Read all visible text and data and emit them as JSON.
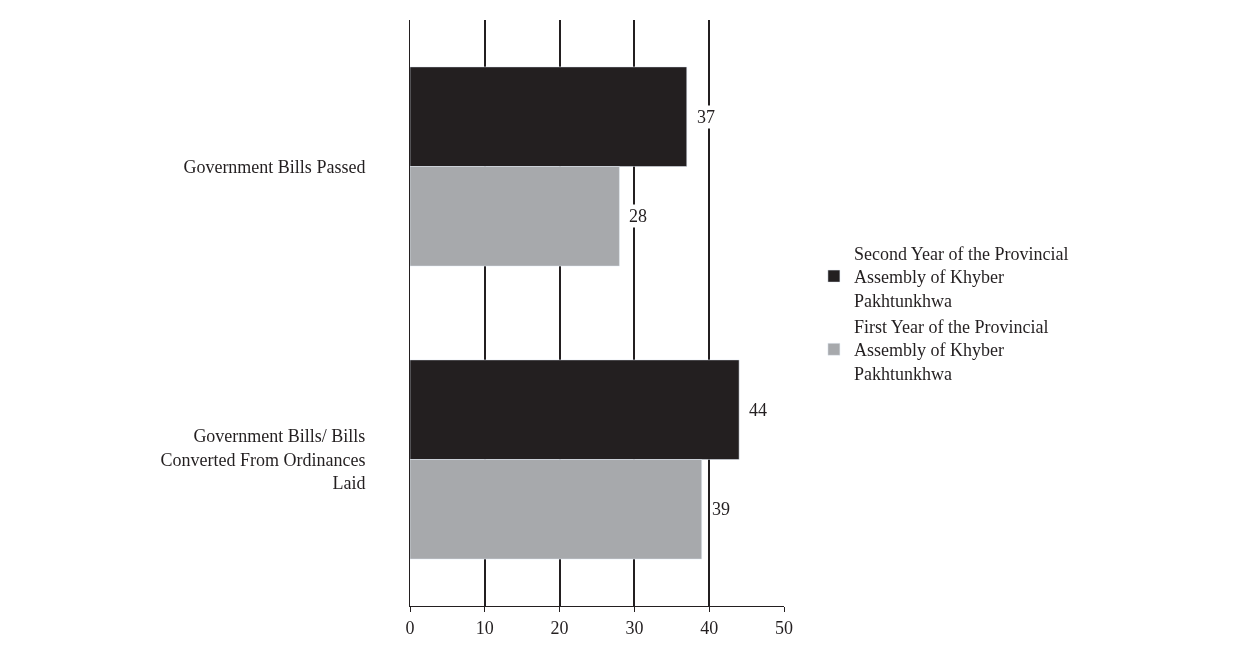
{
  "chart_data": {
    "type": "bar",
    "orientation": "horizontal",
    "categories": [
      "Government Bills Passed",
      "Government Bills/ Bills Converted From Ordinances Laid"
    ],
    "series": [
      {
        "name": "Second Year of the Provincial Assembly of Khyber Pakhtunkhwa",
        "color": "#231f20",
        "values": [
          37,
          44
        ]
      },
      {
        "name": "First Year of the Provincial Assembly of Khyber Pakhtunkhwa",
        "color": "#a7a9ac",
        "values": [
          28,
          39
        ]
      }
    ],
    "xlim": [
      0,
      50
    ],
    "xticks": [
      0,
      10,
      20,
      30,
      40,
      50
    ],
    "grid": "x",
    "legend": "right",
    "data_labels": true
  }
}
